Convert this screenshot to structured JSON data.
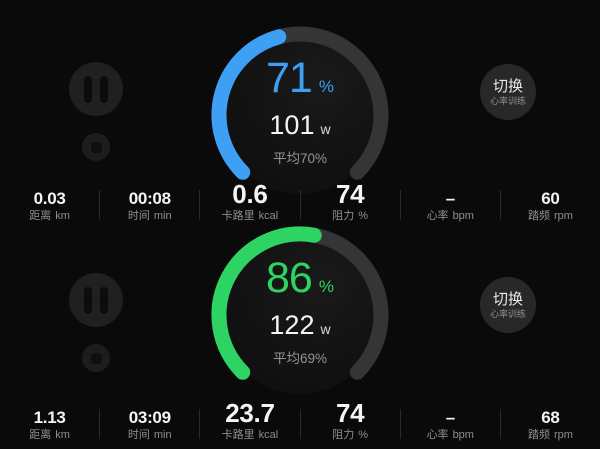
{
  "colors": {
    "background": "#0a0a0a",
    "accent_blue": "#3da0f4",
    "accent_green": "#2ed463",
    "gauge_track": "#343536",
    "label_gray": "#8e8e8e"
  },
  "icons": {
    "pause": "pause-icon",
    "stop": "stop-icon"
  },
  "panels": [
    {
      "gauge": {
        "percent": "71",
        "percent_unit": "%",
        "watts": "101",
        "watts_unit": "w",
        "average_text": "平均70%",
        "color": "#3da0f4"
      },
      "switch_button": {
        "label": "切换",
        "sublabel": "心率训练"
      },
      "stats": [
        {
          "value": "0.03",
          "label": "距离",
          "unit": "km"
        },
        {
          "value": "00:08",
          "label": "时间",
          "unit": "min"
        },
        {
          "value": "0.6",
          "label": "卡路里",
          "unit": "kcal"
        },
        {
          "value": "74",
          "label": "阻力",
          "unit": "%"
        },
        {
          "value": "–",
          "label": "心率",
          "unit": "bpm"
        },
        {
          "value": "60",
          "label": "踏频",
          "unit": "rpm"
        }
      ]
    },
    {
      "gauge": {
        "percent": "86",
        "percent_unit": "%",
        "watts": "122",
        "watts_unit": "w",
        "average_text": "平均69%",
        "color": "#2ed463"
      },
      "switch_button": {
        "label": "切换",
        "sublabel": "心率训练"
      },
      "stats": [
        {
          "value": "1.13",
          "label": "距离",
          "unit": "km"
        },
        {
          "value": "03:09",
          "label": "时间",
          "unit": "min"
        },
        {
          "value": "23.7",
          "label": "卡路里",
          "unit": "kcal"
        },
        {
          "value": "74",
          "label": "阻力",
          "unit": "%"
        },
        {
          "value": "–",
          "label": "心率",
          "unit": "bpm"
        },
        {
          "value": "68",
          "label": "踏频",
          "unit": "rpm"
        }
      ]
    }
  ]
}
